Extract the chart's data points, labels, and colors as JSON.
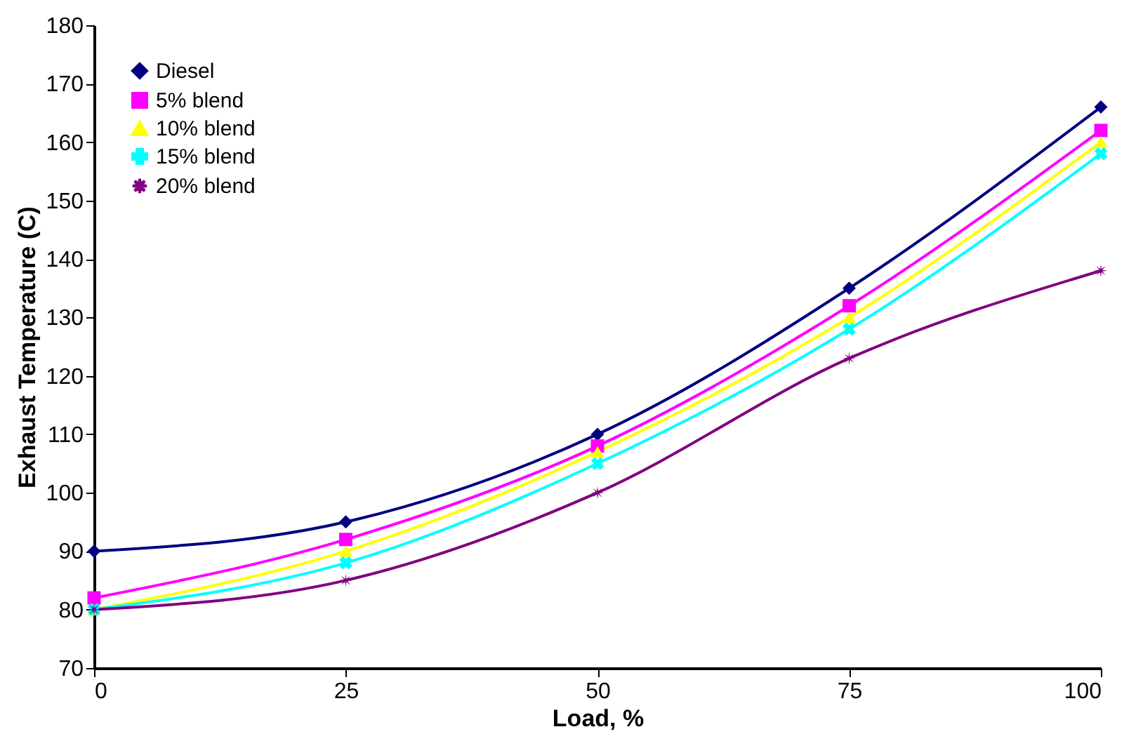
{
  "chart_data": {
    "type": "line",
    "xlabel": "Load, %",
    "ylabel": "Exhaust Temperature (C)",
    "x": [
      0,
      25,
      50,
      75,
      100
    ],
    "series": [
      {
        "name": "Diesel",
        "color": "#000080",
        "marker": "diamond",
        "values": [
          90,
          95,
          110,
          135,
          166
        ]
      },
      {
        "name": "5% blend",
        "color": "#ff00ff",
        "marker": "square",
        "values": [
          82,
          92,
          108,
          132,
          162
        ]
      },
      {
        "name": "10% blend",
        "color": "#ffff00",
        "marker": "triangle",
        "values": [
          80,
          90,
          107,
          130,
          160
        ]
      },
      {
        "name": "15% blend",
        "color": "#00ffff",
        "marker": "cross",
        "values": [
          80,
          88,
          105,
          128,
          158
        ]
      },
      {
        "name": "20% blend",
        "color": "#800080",
        "marker": "star",
        "values": [
          80,
          85,
          100,
          123,
          138
        ]
      }
    ],
    "xlim": [
      0,
      100
    ],
    "xticks": [
      0,
      25,
      50,
      75,
      100
    ],
    "ylim": [
      70,
      180
    ],
    "yticks": [
      70,
      80,
      90,
      100,
      110,
      120,
      130,
      140,
      150,
      160,
      170,
      180
    ],
    "grid": false,
    "legend": "top left",
    "line_style": "solid"
  }
}
